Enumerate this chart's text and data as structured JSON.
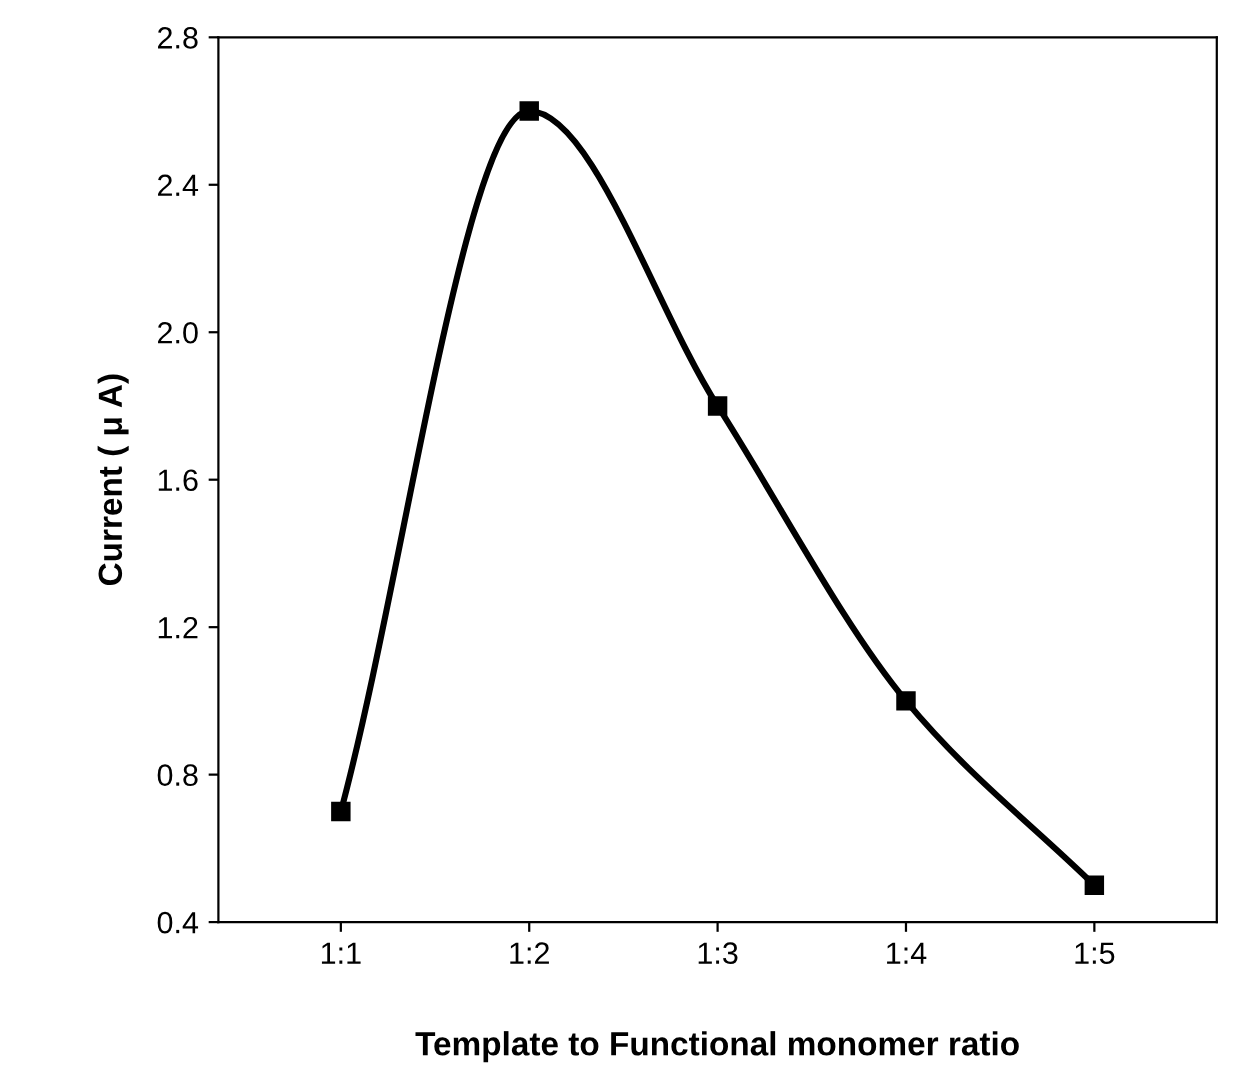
{
  "chart_data": {
    "type": "line",
    "xlabel": "Template to Functional monomer ratio",
    "ylabel": "Current ( μ A)",
    "categories": [
      "1:1",
      "1:2",
      "1:3",
      "1:4",
      "1:5"
    ],
    "series": [
      {
        "color": "#000000",
        "values": [
          0.7,
          2.6,
          1.8,
          1.0,
          0.5
        ]
      }
    ],
    "ylim": [
      0.4,
      2.8
    ],
    "yticks": [
      0.4,
      0.8,
      1.2,
      1.6,
      {
        "value": 2,
        "label": "2.0"
      },
      2.4,
      2.8
    ],
    "marker": "square",
    "line_style": "solid",
    "grid": false,
    "legend": false
  }
}
